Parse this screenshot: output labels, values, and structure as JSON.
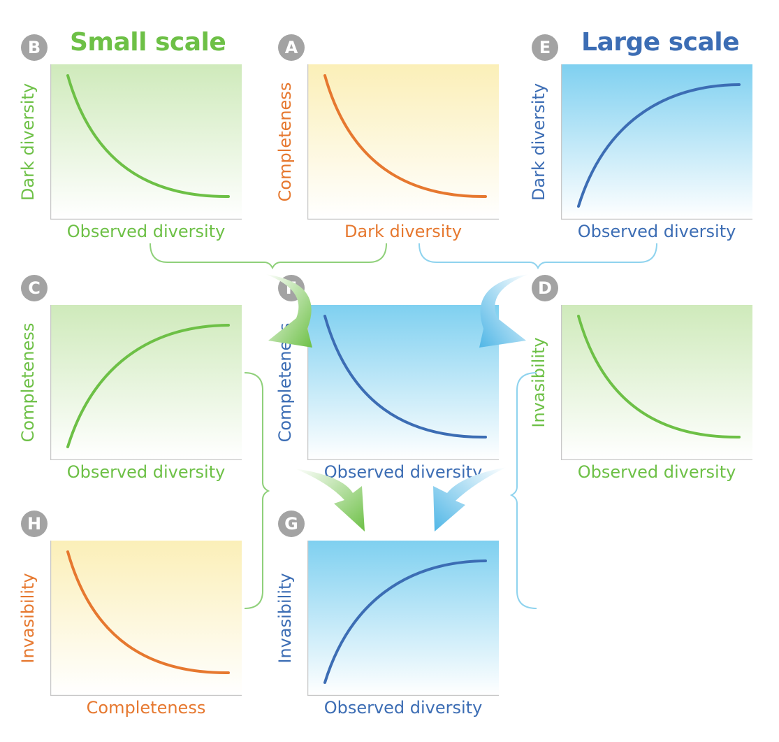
{
  "titles": {
    "small": "Small scale",
    "large": "Large scale"
  },
  "colors": {
    "green": "#6dc046",
    "orange": "#e6782f",
    "blue": "#3c6db4",
    "lightblue": "#7fd0f0",
    "badge": "#a3a3a3"
  },
  "panels": [
    {
      "id": "B",
      "badge": "B",
      "xlabel": "Observed diversity",
      "ylabel": "Dark diversity",
      "trend": "decreasing",
      "theme": "green"
    },
    {
      "id": "A",
      "badge": "A",
      "xlabel": "Dark diversity",
      "ylabel": "Completeness",
      "trend": "decreasing",
      "theme": "orange"
    },
    {
      "id": "E",
      "badge": "E",
      "xlabel": "Observed diversity",
      "ylabel": "Dark diversity",
      "trend": "increasing",
      "theme": "blue"
    },
    {
      "id": "C",
      "badge": "C",
      "xlabel": "Observed diversity",
      "ylabel": "Completeness",
      "trend": "increasing",
      "theme": "green"
    },
    {
      "id": "F",
      "badge": "F",
      "xlabel": "Observed diversity",
      "ylabel": "Completeness",
      "trend": "decreasing",
      "theme": "blue"
    },
    {
      "id": "D",
      "badge": "D",
      "xlabel": "Observed diversity",
      "ylabel": "Invasibility",
      "trend": "decreasing",
      "theme": "green"
    },
    {
      "id": "H",
      "badge": "H",
      "xlabel": "Completeness",
      "ylabel": "Invasibility",
      "trend": "decreasing",
      "theme": "orange"
    },
    {
      "id": "G",
      "badge": "G",
      "xlabel": "Observed diversity",
      "ylabel": "Invasibility",
      "trend": "increasing",
      "theme": "blue"
    }
  ]
}
